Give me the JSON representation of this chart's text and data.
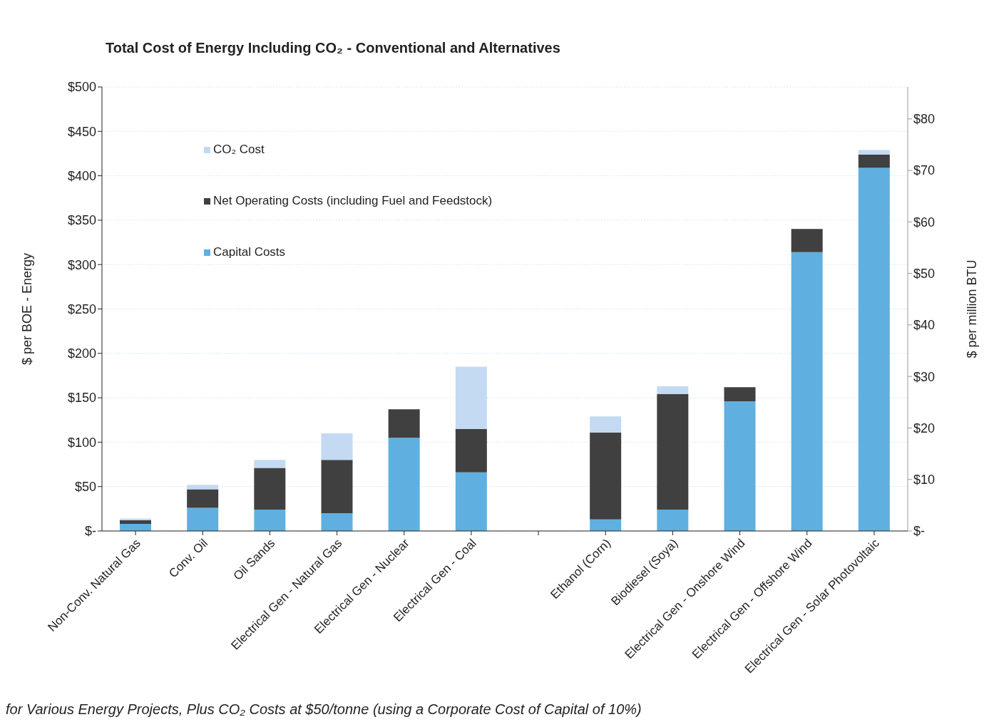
{
  "chart_data": {
    "type": "bar",
    "title": "Total Cost of Energy Including CO₂ - Conventional and Alternatives",
    "ylabel": "$ per BOE - Energy",
    "y2label": "$ per million BTU",
    "categories": [
      "Non-Conv. Natural Gas",
      "Conv. Oil",
      "Oil Sands",
      "Electrical Gen - Natural Gas",
      "Electrical Gen - Nuclear",
      "Electrical Gen - Coal",
      null,
      "Ethanol (Corn)",
      "Biodiesel (Soya)",
      "Electrical Gen - Onshore Wind",
      "Electrical Gen - Offshore Wind",
      "Electrical Gen - Solar Photovoltaic"
    ],
    "stacked": true,
    "series": [
      {
        "name": "Capital Costs",
        "color": "#5fb0e0",
        "values": [
          8,
          26,
          24,
          20,
          105,
          66,
          null,
          13,
          24,
          146,
          314,
          409
        ]
      },
      {
        "name": "Net Operating Costs (including Fuel and Feedstock)",
        "color": "#404040",
        "values": [
          4,
          21,
          47,
          60,
          32,
          49,
          null,
          98,
          130,
          16,
          26,
          15
        ]
      },
      {
        "name": "CO₂ Cost",
        "color": "#c3daf2",
        "values": [
          2,
          5,
          9,
          30,
          0,
          70,
          null,
          18,
          9,
          0,
          0,
          5
        ]
      }
    ],
    "ylim": [
      0,
      500
    ],
    "yticks": [
      {
        "value": 0,
        "label": "$-"
      },
      {
        "value": 50,
        "label": "$50"
      },
      {
        "value": 100,
        "label": "$100"
      },
      {
        "value": 150,
        "label": "$150"
      },
      {
        "value": 200,
        "label": "$200"
      },
      {
        "value": 250,
        "label": "$250"
      },
      {
        "value": 300,
        "label": "$300"
      },
      {
        "value": 350,
        "label": "$350"
      },
      {
        "value": 400,
        "label": "$400"
      },
      {
        "value": 450,
        "label": "$450"
      },
      {
        "value": 500,
        "label": "$500"
      }
    ],
    "y2lim": [
      0,
      86.2
    ],
    "y2ticks": [
      {
        "value": 0,
        "label": "$-"
      },
      {
        "value": 10,
        "label": "$10"
      },
      {
        "value": 20,
        "label": "$20"
      },
      {
        "value": 30,
        "label": "$30"
      },
      {
        "value": 40,
        "label": "$40"
      },
      {
        "value": 50,
        "label": "$50"
      },
      {
        "value": 60,
        "label": "$60"
      },
      {
        "value": 70,
        "label": "$70"
      },
      {
        "value": 80,
        "label": "$80"
      }
    ],
    "grid": "y",
    "legend": "top left",
    "annotations": [
      "for Various Energy Projects, Plus CO₂ Costs at $50/tonne (using a Corporate Cost of Capital of 10%)"
    ]
  }
}
